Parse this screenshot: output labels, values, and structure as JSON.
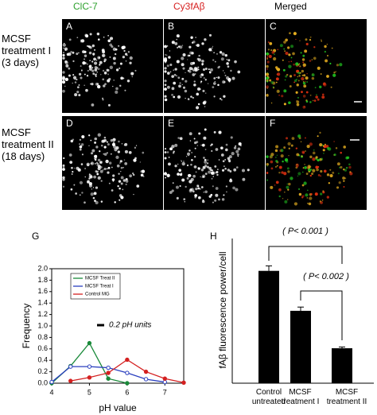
{
  "figure": {
    "column_headers": [
      "ClC-7",
      "Cy3fAβ",
      "Merged"
    ],
    "row_labels": [
      "MCSF\ntreatment I\n(3 days)",
      "MCSF\ntreatment II\n(18 days)"
    ],
    "panels": [
      "A",
      "B",
      "C",
      "D",
      "E",
      "F"
    ]
  },
  "chart_data": [
    {
      "type": "line",
      "panel_label": "G",
      "xlabel": "pH value",
      "ylabel": "Frequency",
      "x": [
        4,
        4.5,
        5,
        5.5,
        6,
        6.5,
        7,
        7.5
      ],
      "series": [
        {
          "name": "MCSF Treat II",
          "color": "#1a8a3a",
          "values": [
            0,
            0.3,
            0.7,
            0.08,
            0,
            null,
            null,
            null
          ]
        },
        {
          "name": "MCSF Treat I",
          "color": "#2a3fbf",
          "values": [
            0.02,
            0.29,
            0.29,
            0.27,
            0.18,
            0.07,
            0.02,
            null
          ]
        },
        {
          "name": "Control MG",
          "color": "#d42020",
          "values": [
            null,
            0.04,
            0.1,
            0.18,
            0.41,
            0.2,
            0.08,
            0.01
          ]
        }
      ],
      "annotation": "0.2 pH units",
      "xlim": [
        4,
        7.5
      ],
      "xticks": [
        4,
        5,
        6,
        7
      ],
      "ylim": [
        0,
        2
      ],
      "yticks": [
        {
          "value": 0,
          "label": "0.0"
        },
        0.2,
        0.4,
        0.6,
        0.8,
        {
          "value": 1,
          "label": "1.0"
        },
        1.2,
        1.4,
        1.6,
        1.8,
        {
          "value": 2,
          "label": "2.0"
        }
      ],
      "legend": "upper left"
    },
    {
      "type": "bar",
      "panel_label": "H",
      "ylabel": "fAβ fluorescence power/cell",
      "categories": [
        "Control\nuntreated",
        "MCSF\ntreatment I",
        "MCSF\ntreatment II"
      ],
      "values": [
        0.9,
        0.58,
        0.28
      ],
      "errors": [
        0.04,
        0.03,
        0.01
      ],
      "color": "#000000",
      "ylim": [
        0,
        1
      ],
      "annotations": [
        "( P< 0.001 )",
        "( P< 0.002 )"
      ]
    }
  ]
}
